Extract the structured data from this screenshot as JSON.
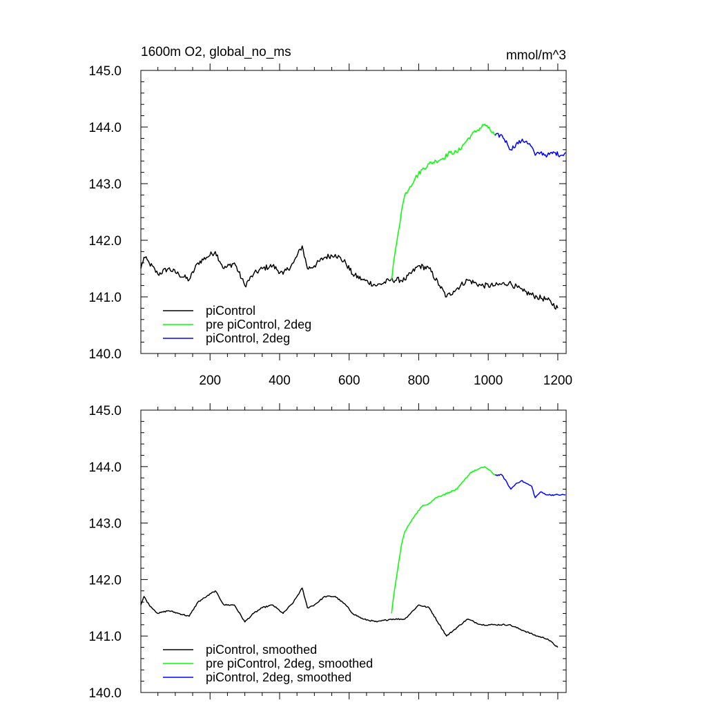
{
  "title_left": "1600m O2, global_no_ms",
  "title_right": "mmol/m^3",
  "colors": {
    "piControl": "#000000",
    "pre": "#00ff00",
    "twodeg": "#0000ff"
  },
  "chart_data": [
    {
      "type": "line",
      "panel": "top",
      "xlim": [
        1,
        1224
      ],
      "ylim": [
        140.0,
        145.0
      ],
      "xticks": [
        200,
        400,
        600,
        800,
        1000,
        1200
      ],
      "xtick_labels": [
        "200",
        "400",
        "600",
        "800",
        "1000",
        "1200"
      ],
      "yticks": [
        140,
        141,
        142,
        143,
        144,
        145
      ],
      "ytick_labels": [
        "140.0",
        "141.0",
        "142.0",
        "143.0",
        "144.0",
        "145.0"
      ],
      "legend_position": "bottom-left",
      "series": [
        {
          "name": "piControl",
          "color": "#000000",
          "noise": 0.05,
          "x": [
            1,
            10,
            25,
            50,
            80,
            110,
            140,
            165,
            190,
            215,
            240,
            270,
            300,
            325,
            350,
            380,
            410,
            440,
            465,
            480,
            500,
            530,
            560,
            590,
            610,
            640,
            680,
            720,
            760,
            800,
            830,
            860,
            880,
            900,
            940,
            980,
            1020,
            1060,
            1100,
            1140,
            1170,
            1200
          ],
          "y": [
            141.5,
            141.7,
            141.6,
            141.4,
            141.5,
            141.4,
            141.3,
            141.6,
            141.7,
            141.8,
            141.5,
            141.6,
            141.2,
            141.4,
            141.5,
            141.55,
            141.4,
            141.6,
            141.9,
            141.5,
            141.55,
            141.7,
            141.75,
            141.6,
            141.4,
            141.3,
            141.2,
            141.3,
            141.3,
            141.55,
            141.5,
            141.2,
            141.0,
            141.1,
            141.3,
            141.2,
            141.2,
            141.25,
            141.1,
            141.0,
            140.95,
            140.8
          ]
        },
        {
          "name": "pre piControl, 2deg",
          "color": "#00ff00",
          "noise": 0.04,
          "x": [
            722,
            730,
            740,
            750,
            760,
            775,
            790,
            810,
            830,
            850,
            870,
            890,
            910,
            930,
            950,
            970,
            990,
            1000,
            1020
          ],
          "y": [
            141.3,
            141.7,
            142.1,
            142.5,
            142.8,
            142.95,
            143.1,
            143.25,
            143.35,
            143.4,
            143.45,
            143.55,
            143.55,
            143.7,
            143.85,
            143.95,
            144.05,
            143.98,
            143.85
          ]
        },
        {
          "name": "piControl, 2deg",
          "color": "#0000ff",
          "noise": 0.04,
          "x": [
            1020,
            1040,
            1055,
            1065,
            1080,
            1095,
            1110,
            1125,
            1135,
            1150,
            1170,
            1190,
            1210,
            1222
          ],
          "y": [
            143.85,
            143.85,
            143.7,
            143.6,
            143.7,
            143.75,
            143.75,
            143.65,
            143.5,
            143.55,
            143.5,
            143.55,
            143.5,
            143.55
          ]
        }
      ]
    },
    {
      "type": "line",
      "panel": "bottom",
      "xlim": [
        1,
        1224
      ],
      "ylim": [
        140.0,
        145.0
      ],
      "yticks": [
        140,
        141,
        142,
        143,
        144,
        145
      ],
      "ytick_labels": [
        "140.0",
        "141.0",
        "142.0",
        "143.0",
        "144.0",
        "145.0"
      ],
      "legend_position": "bottom-left",
      "series": [
        {
          "name": "piControl, smoothed",
          "color": "#000000",
          "noise": 0.012,
          "x": [
            1,
            10,
            25,
            50,
            80,
            110,
            140,
            165,
            190,
            215,
            240,
            270,
            300,
            325,
            350,
            380,
            410,
            440,
            465,
            480,
            500,
            530,
            560,
            590,
            610,
            640,
            680,
            720,
            760,
            800,
            830,
            860,
            880,
            900,
            940,
            980,
            1020,
            1060,
            1100,
            1140,
            1170,
            1200
          ],
          "y": [
            141.55,
            141.7,
            141.55,
            141.4,
            141.45,
            141.4,
            141.35,
            141.6,
            141.7,
            141.8,
            141.55,
            141.55,
            141.25,
            141.4,
            141.5,
            141.55,
            141.4,
            141.6,
            141.85,
            141.5,
            141.55,
            141.7,
            141.7,
            141.55,
            141.4,
            141.3,
            141.25,
            141.3,
            141.3,
            141.55,
            141.5,
            141.2,
            141.0,
            141.1,
            141.3,
            141.2,
            141.2,
            141.2,
            141.1,
            141.0,
            140.95,
            140.8
          ]
        },
        {
          "name": "pre piControl, 2deg, smoothed",
          "color": "#00ff00",
          "noise": 0.012,
          "x": [
            722,
            730,
            740,
            750,
            760,
            775,
            790,
            810,
            830,
            850,
            870,
            890,
            910,
            930,
            950,
            970,
            990,
            1000,
            1020
          ],
          "y": [
            141.4,
            141.8,
            142.2,
            142.6,
            142.85,
            143.0,
            143.15,
            143.3,
            143.35,
            143.45,
            143.5,
            143.55,
            143.6,
            143.75,
            143.9,
            143.95,
            144.0,
            143.95,
            143.85
          ]
        },
        {
          "name": "piControl, 2deg, smoothed",
          "color": "#0000ff",
          "noise": 0.012,
          "x": [
            1020,
            1040,
            1055,
            1065,
            1080,
            1095,
            1110,
            1125,
            1135,
            1150,
            1170,
            1190,
            1210,
            1222
          ],
          "y": [
            143.85,
            143.85,
            143.7,
            143.6,
            143.7,
            143.75,
            143.7,
            143.65,
            143.45,
            143.55,
            143.5,
            143.5,
            143.5,
            143.5
          ]
        }
      ]
    }
  ]
}
